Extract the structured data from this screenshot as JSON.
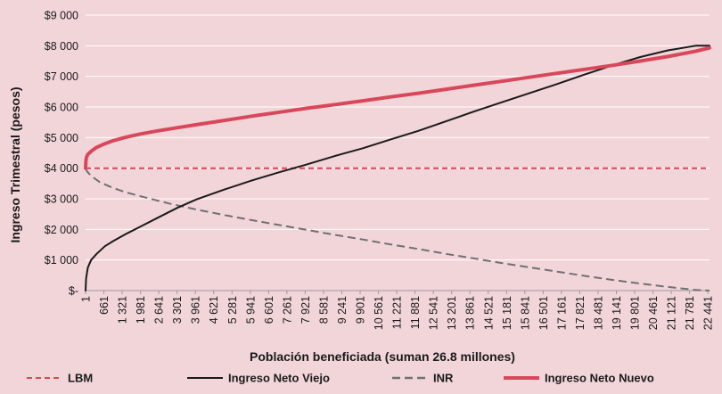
{
  "chart_data": {
    "type": "line",
    "title": "",
    "xlabel": "Población beneficiada (suman 26.8 millones)",
    "ylabel": "Ingreso Trimestral (pesos)",
    "ylim": [
      0,
      9000
    ],
    "xlim": [
      1,
      22500
    ],
    "y_ticks": [
      {
        "value": 0,
        "label": "$-"
      },
      {
        "value": 1000,
        "label": "$1 000"
      },
      {
        "value": 2000,
        "label": "$2 000"
      },
      {
        "value": 3000,
        "label": "$3 000"
      },
      {
        "value": 4000,
        "label": "$4 000"
      },
      {
        "value": 5000,
        "label": "$5 000"
      },
      {
        "value": 6000,
        "label": "$6 000"
      },
      {
        "value": 7000,
        "label": "$7 000"
      },
      {
        "value": 8000,
        "label": "$8 000"
      },
      {
        "value": 9000,
        "label": "$9 000"
      }
    ],
    "x_tick_labels": [
      "1",
      "661",
      "1 321",
      "1 981",
      "2 641",
      "3 301",
      "3 961",
      "4 621",
      "5 281",
      "5 941",
      "6 601",
      "7 261",
      "7 921",
      "8 581",
      "9 241",
      "9 901",
      "10 561",
      "11 221",
      "11 881",
      "12 541",
      "13 201",
      "13 861",
      "14 521",
      "15 181",
      "15 841",
      "16 501",
      "17 161",
      "17 821",
      "18 481",
      "19 141",
      "19 801",
      "20 461",
      "21 121",
      "21 781",
      "22 441"
    ],
    "grid": true,
    "legend_position": "bottom",
    "series": [
      {
        "name": "LBM",
        "color": "#d9485a",
        "style": "dashed",
        "x": [
          1,
          22500
        ],
        "y": [
          4000,
          4000
        ]
      },
      {
        "name": "Ingreso Neto Viejo",
        "color": "#1a1a1a",
        "style": "solid",
        "x": [
          1,
          20,
          80,
          200,
          400,
          700,
          1000,
          1500,
          2000,
          2600,
          3300,
          4000,
          5000,
          6000,
          7000,
          7900,
          9000,
          10000,
          11000,
          12000,
          13000,
          14000,
          15000,
          16000,
          17000,
          18000,
          19000,
          20000,
          21000,
          22000,
          22500
        ],
        "y": [
          0,
          400,
          750,
          1000,
          1200,
          1450,
          1620,
          1870,
          2100,
          2380,
          2700,
          2980,
          3300,
          3600,
          3870,
          4100,
          4400,
          4650,
          4940,
          5220,
          5530,
          5850,
          6150,
          6450,
          6750,
          7060,
          7360,
          7630,
          7850,
          8000,
          8000
        ]
      },
      {
        "name": "INR",
        "color": "#707070",
        "style": "dashed",
        "x": [
          1,
          50,
          200,
          500,
          1000,
          1500,
          2000,
          3000,
          4000,
          5000,
          6000,
          7000,
          8000,
          9000,
          10000,
          11000,
          12000,
          13000,
          14000,
          15000,
          16000,
          17000,
          18000,
          19000,
          20000,
          21000,
          22000,
          22500
        ],
        "y": [
          4000,
          3900,
          3750,
          3550,
          3350,
          3200,
          3080,
          2850,
          2650,
          2470,
          2300,
          2140,
          1980,
          1820,
          1670,
          1510,
          1360,
          1200,
          1050,
          900,
          760,
          620,
          480,
          350,
          230,
          120,
          20,
          0
        ]
      },
      {
        "name": "Ingreso Neto Nuevo",
        "color": "#d9485a",
        "style": "solid",
        "x": [
          1,
          10,
          30,
          80,
          200,
          400,
          700,
          1000,
          1500,
          2000,
          2600,
          3300,
          4000,
          5000,
          6000,
          7000,
          8000,
          9000,
          10000,
          11000,
          12000,
          13000,
          14000,
          15000,
          16000,
          17000,
          18000,
          19000,
          20000,
          21000,
          22000,
          22500
        ],
        "y": [
          4000,
          4200,
          4350,
          4450,
          4550,
          4680,
          4800,
          4900,
          5020,
          5120,
          5220,
          5320,
          5420,
          5560,
          5700,
          5830,
          5960,
          6080,
          6200,
          6330,
          6450,
          6580,
          6710,
          6840,
          6970,
          7100,
          7230,
          7360,
          7500,
          7650,
          7820,
          7930
        ]
      }
    ]
  }
}
